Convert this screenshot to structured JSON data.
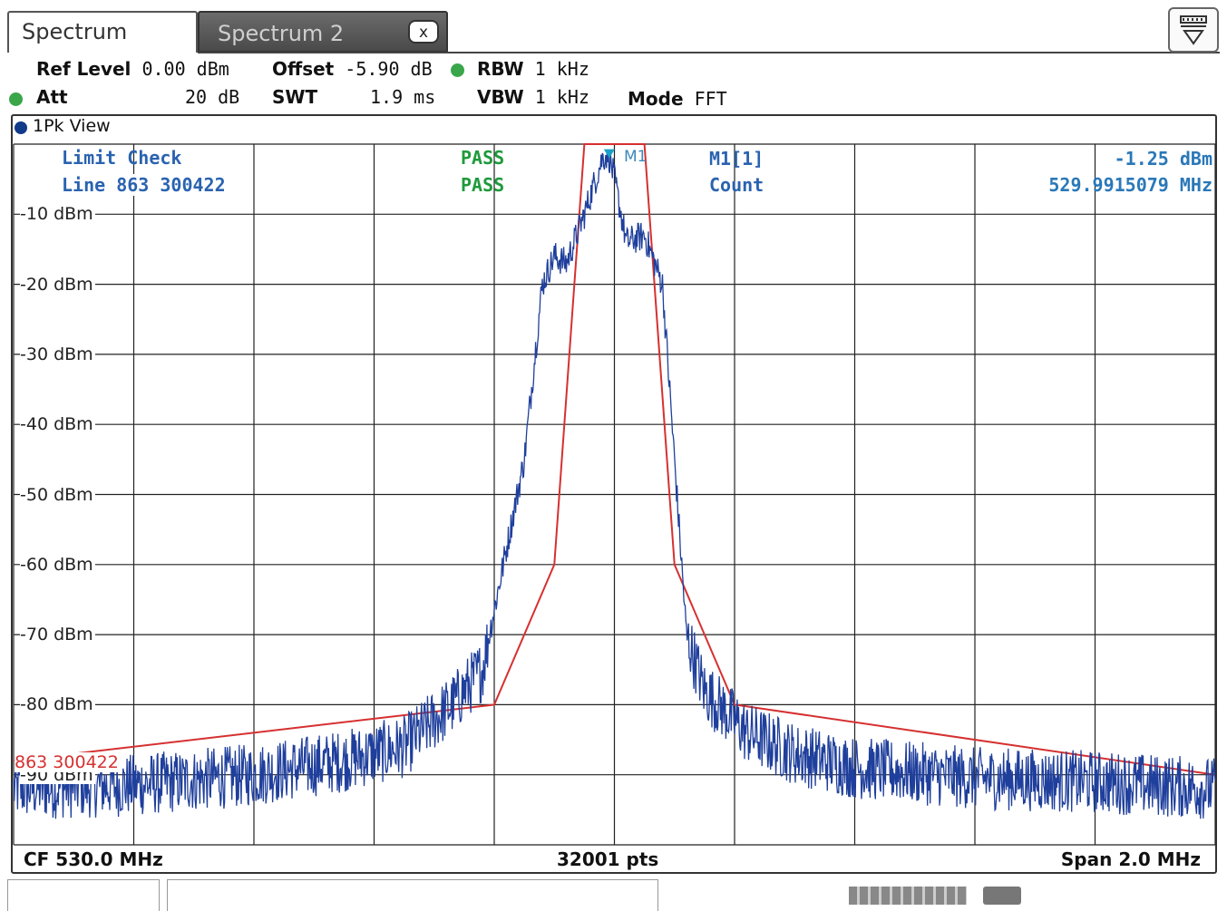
{
  "tabs": [
    {
      "label": "Spectrum",
      "active": true
    },
    {
      "label": "Spectrum 2",
      "active": false,
      "close_glyph": "x"
    }
  ],
  "toolbar": {
    "icon": "display-settings-icon"
  },
  "settings": {
    "ref_level_label": "Ref Level",
    "ref_level_value": "0.00 dBm",
    "offset_label": "Offset",
    "offset_value": "-5.90 dB",
    "rbw_label": "RBW",
    "rbw_value": "1 kHz",
    "att_label": "Att",
    "att_value": "20 dB",
    "swt_label": "SWT",
    "swt_value": "1.9 ms",
    "vbw_label": "VBW",
    "vbw_value": "1 kHz",
    "mode_label": "Mode",
    "mode_value": "FFT"
  },
  "view": {
    "title": "1Pk View"
  },
  "limit_check": {
    "title": "Limit Check",
    "title_status": "PASS",
    "line_label": "Line 863 300422",
    "line_status": "PASS"
  },
  "marker": {
    "label": "M1",
    "name": "M1[1]",
    "level": "-1.25 dBm",
    "count_label": "Count",
    "count_value": "529.9915079 MHz"
  },
  "limit_line_label": "863 300422",
  "y_ticks": [
    "-10 dBm",
    "-20 dBm",
    "-30 dBm",
    "-40 dBm",
    "-50 dBm",
    "-60 dBm",
    "-70 dBm",
    "-80 dBm",
    "-90 dBm"
  ],
  "footer": {
    "cf": "CF 530.0 MHz",
    "points": "32001 pts",
    "span": "Span 2.0 MHz"
  },
  "colors": {
    "trace": "#1f3f9c",
    "limit": "#d63030",
    "grid": "#222222",
    "pass": "#1f9a3c",
    "marker_text": "#2a63b0"
  },
  "chart_data": {
    "type": "line",
    "x_unit": "MHz",
    "y_unit": "dBm",
    "xlim": [
      529.0,
      531.0
    ],
    "ylim": [
      -100,
      0
    ],
    "center_frequency": 530.0,
    "span": 2.0,
    "ref_level": 0.0,
    "grid": true,
    "series": [
      {
        "name": "1Pk View",
        "x": [
          529.0,
          529.2,
          529.4,
          529.55,
          529.65,
          529.73,
          529.78,
          529.85,
          529.88,
          529.9,
          529.92,
          529.95,
          529.98,
          529.99,
          530.0,
          530.02,
          530.05,
          530.08,
          530.1,
          530.12,
          530.15,
          530.22,
          530.3,
          530.4,
          530.6,
          530.8,
          531.0
        ],
        "y": [
          -92,
          -91.5,
          -90,
          -88,
          -86,
          -80,
          -75,
          -45,
          -20,
          -16,
          -17,
          -10,
          -2,
          -1.3,
          -5,
          -14,
          -13,
          -20,
          -45,
          -70,
          -78,
          -84,
          -87,
          -89,
          -90.5,
          -91,
          -92
        ]
      },
      {
        "name": "Limit Line 863 300422",
        "x": [
          529.0,
          529.8,
          529.9,
          529.95,
          530.05,
          530.1,
          530.2,
          531.0
        ],
        "y": [
          -88,
          -80,
          -60,
          0,
          0,
          -60,
          -80,
          -90
        ]
      }
    ],
    "marker": {
      "name": "M1",
      "x": 529.9915079,
      "y": -1.25
    }
  }
}
